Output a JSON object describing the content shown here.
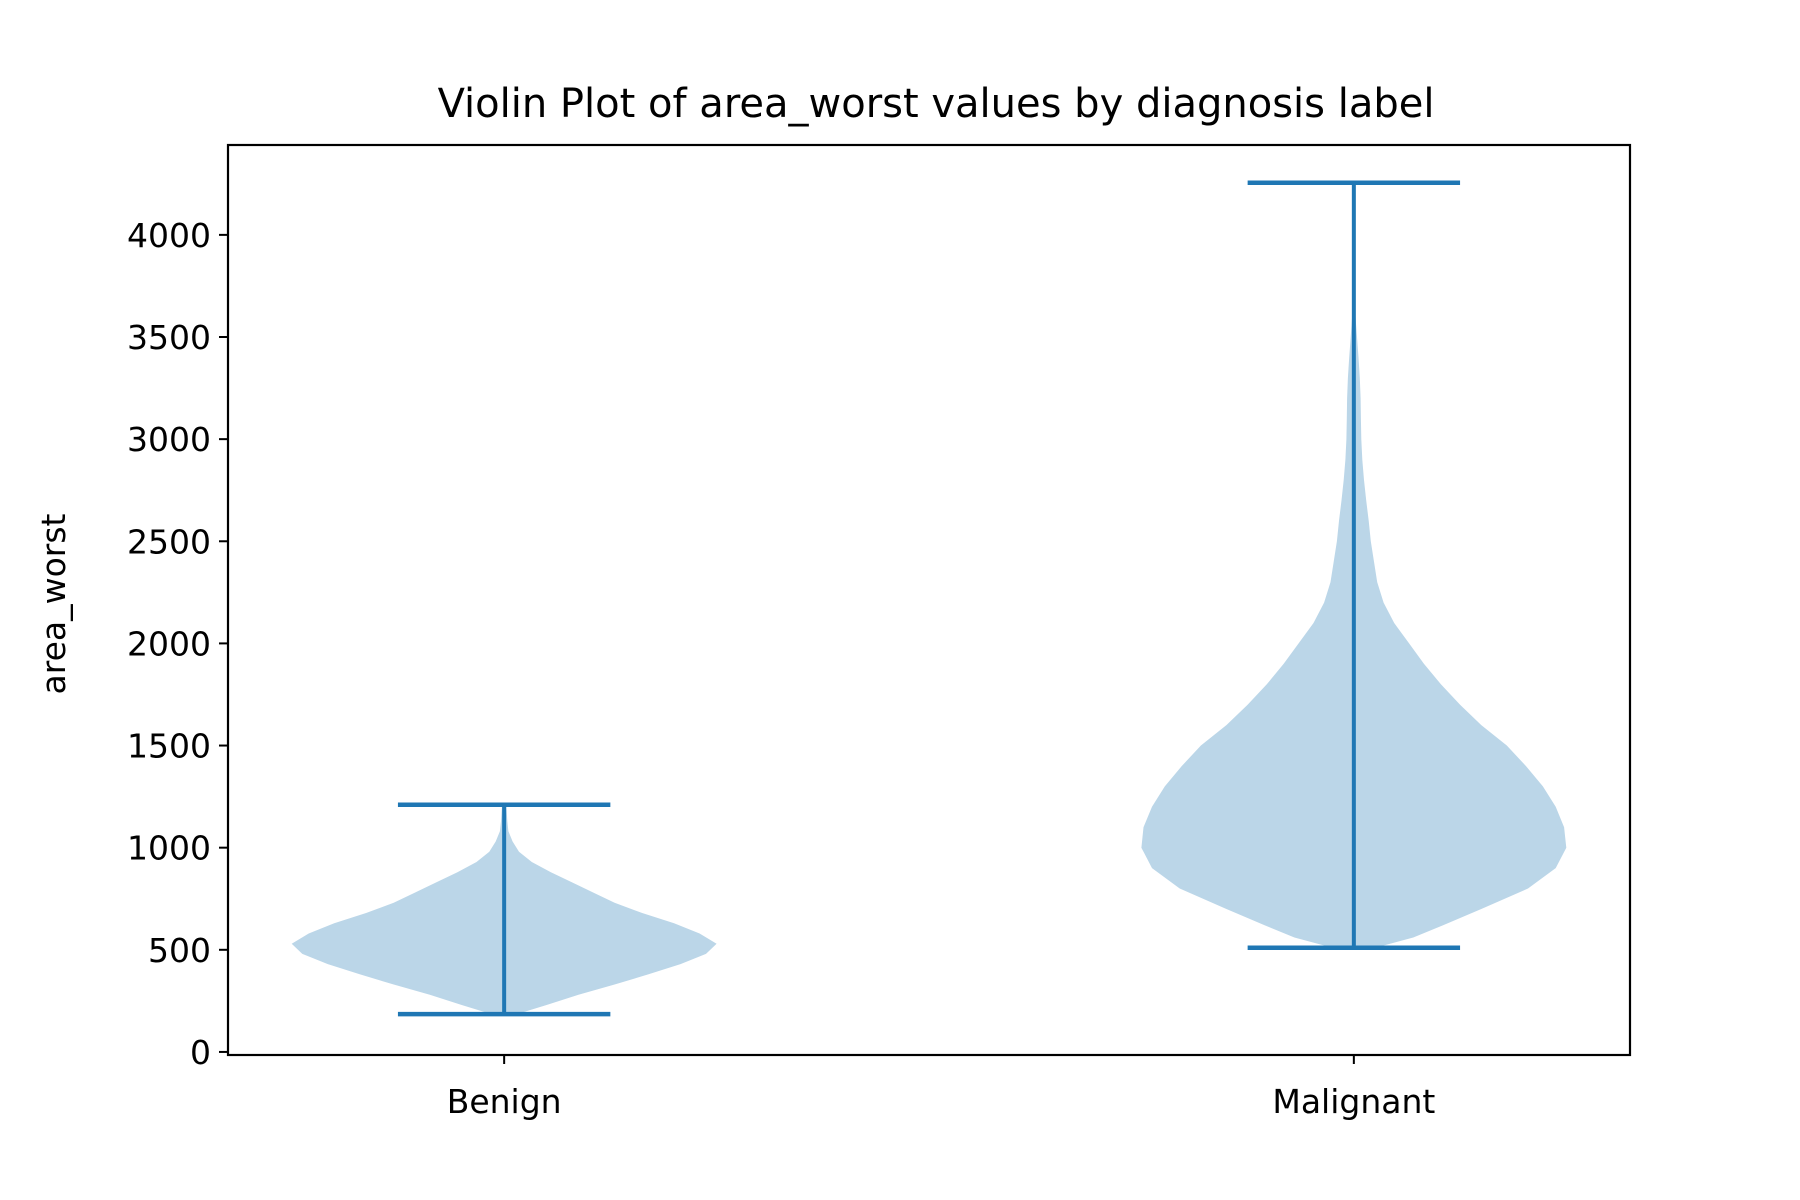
{
  "chart_data": {
    "type": "violin",
    "title": "Violin Plot of area_worst values by diagnosis label",
    "xlabel": "",
    "ylabel": "area_worst",
    "ylim": [
      -15,
      4440
    ],
    "yticks": [
      0,
      500,
      1000,
      1500,
      2000,
      2500,
      3000,
      3500,
      4000
    ],
    "categories": [
      "Benign",
      "Malignant"
    ],
    "colors": {
      "body": "#bbd6e8",
      "lines": "#1f77b4"
    },
    "series": [
      {
        "category": "Benign",
        "min": 185,
        "max": 1210,
        "density": [
          [
            185,
            0.06
          ],
          [
            230,
            0.2
          ],
          [
            280,
            0.35
          ],
          [
            330,
            0.52
          ],
          [
            380,
            0.68
          ],
          [
            430,
            0.83
          ],
          [
            480,
            0.95
          ],
          [
            530,
            1.0
          ],
          [
            580,
            0.92
          ],
          [
            630,
            0.8
          ],
          [
            680,
            0.65
          ],
          [
            730,
            0.52
          ],
          [
            780,
            0.42
          ],
          [
            830,
            0.32
          ],
          [
            880,
            0.22
          ],
          [
            930,
            0.13
          ],
          [
            980,
            0.07
          ],
          [
            1030,
            0.04
          ],
          [
            1080,
            0.02
          ],
          [
            1130,
            0.015
          ],
          [
            1210,
            0.01
          ]
        ]
      },
      {
        "category": "Malignant",
        "min": 510,
        "max": 4255,
        "density": [
          [
            510,
            0.1
          ],
          [
            560,
            0.28
          ],
          [
            620,
            0.42
          ],
          [
            700,
            0.6
          ],
          [
            800,
            0.82
          ],
          [
            900,
            0.95
          ],
          [
            1000,
            1.0
          ],
          [
            1100,
            0.99
          ],
          [
            1200,
            0.95
          ],
          [
            1300,
            0.89
          ],
          [
            1400,
            0.81
          ],
          [
            1500,
            0.72
          ],
          [
            1600,
            0.6
          ],
          [
            1700,
            0.5
          ],
          [
            1800,
            0.41
          ],
          [
            1900,
            0.33
          ],
          [
            2000,
            0.26
          ],
          [
            2100,
            0.19
          ],
          [
            2200,
            0.14
          ],
          [
            2300,
            0.11
          ],
          [
            2400,
            0.095
          ],
          [
            2500,
            0.08
          ],
          [
            2600,
            0.07
          ],
          [
            2700,
            0.058
          ],
          [
            2800,
            0.048
          ],
          [
            2900,
            0.04
          ],
          [
            3000,
            0.035
          ],
          [
            3100,
            0.033
          ],
          [
            3200,
            0.032
          ],
          [
            3300,
            0.028
          ],
          [
            3400,
            0.022
          ],
          [
            3500,
            0.015
          ],
          [
            3600,
            0.008
          ],
          [
            3700,
            0.004
          ],
          [
            3800,
            0.003
          ],
          [
            3900,
            0.002
          ],
          [
            4000,
            0.0015
          ],
          [
            4255,
            0.001
          ]
        ]
      }
    ]
  }
}
